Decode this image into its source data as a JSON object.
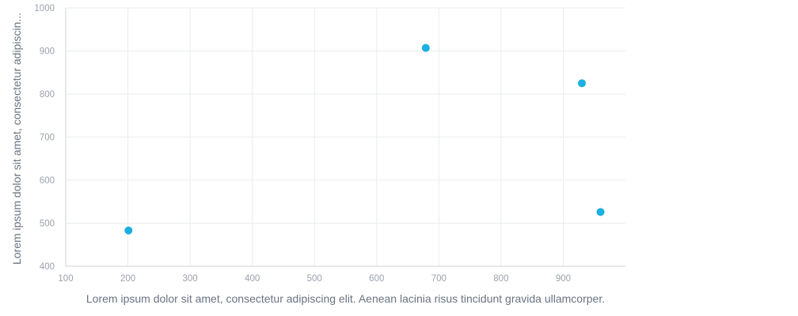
{
  "chart_data": {
    "type": "scatter",
    "xlabel": "Lorem ipsum dolor sit amet, consectetur adipiscing elit. Aenean lacinia risus tincidunt gravida ullamcorper.",
    "ylabel": "Lorem ipsum dolor sit amet, consectetur adipiscin...",
    "xlim": [
      100,
      1000
    ],
    "ylim": [
      400,
      1000
    ],
    "x_ticks": [
      100,
      200,
      300,
      400,
      500,
      600,
      700,
      800,
      900
    ],
    "y_ticks": [
      400,
      500,
      600,
      700,
      800,
      900,
      1000
    ],
    "grid": true,
    "series": [
      {
        "color": "#1ab0e0",
        "points": [
          {
            "x": 201,
            "y": 483
          },
          {
            "x": 679,
            "y": 907
          },
          {
            "x": 930,
            "y": 825
          },
          {
            "x": 960,
            "y": 526
          }
        ]
      }
    ]
  }
}
